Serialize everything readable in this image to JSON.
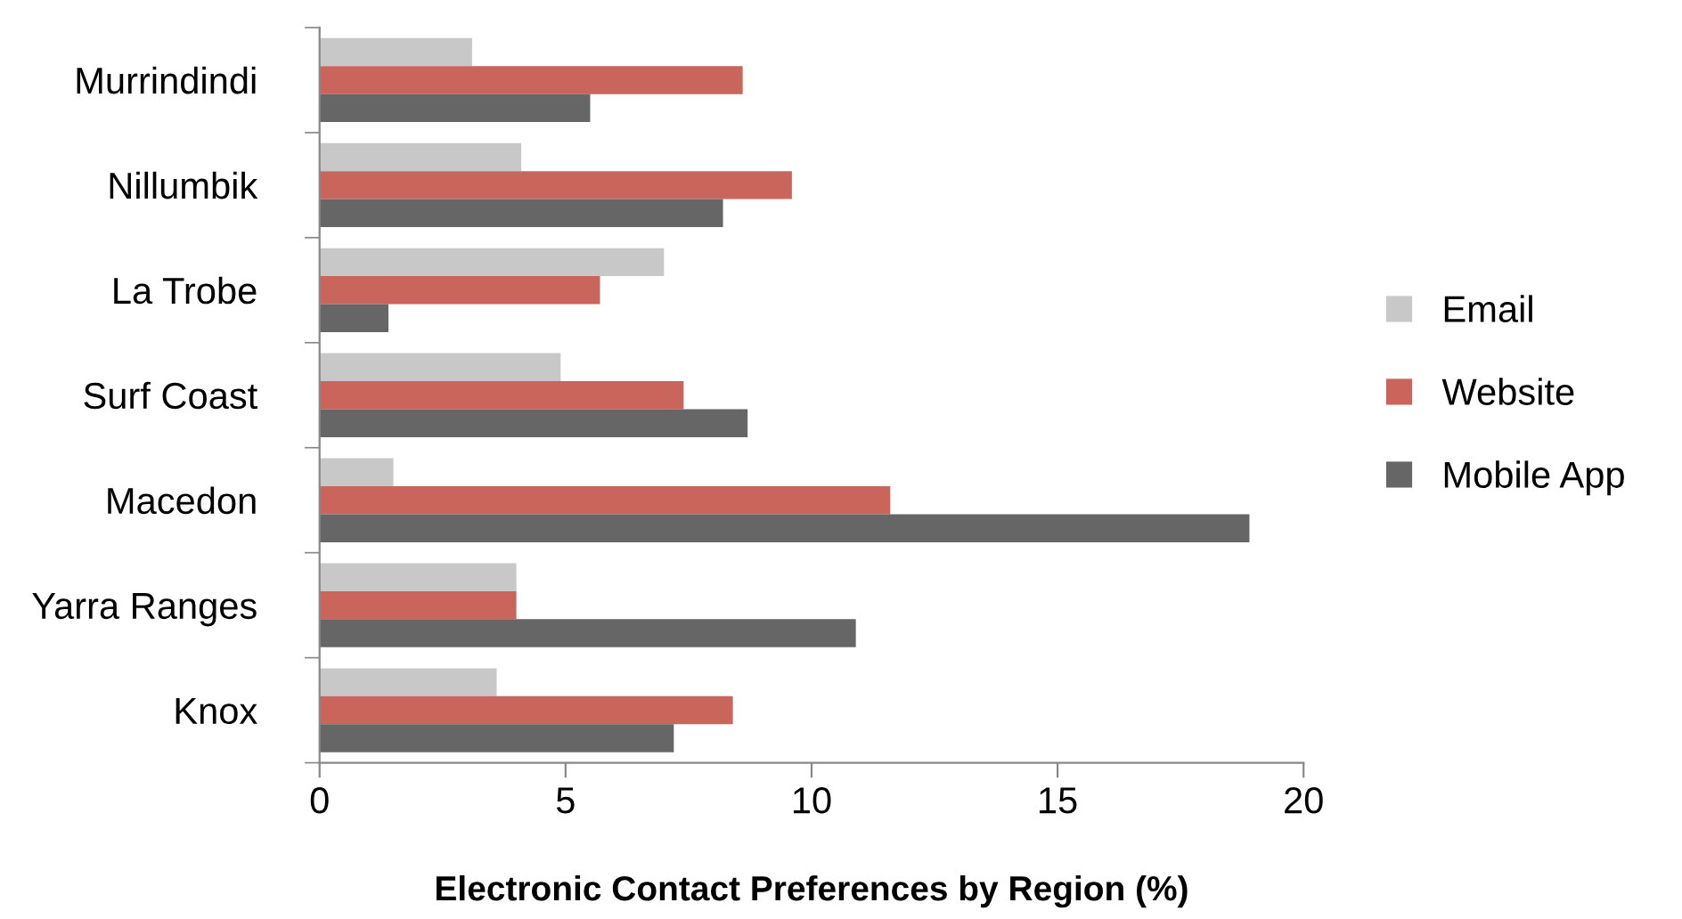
{
  "chart_data": {
    "type": "bar",
    "orientation": "horizontal",
    "xlabel": "Electronic Contact Preferences by Region (%)",
    "categories": [
      "Murrindindi",
      "Nillumbik",
      "La Trobe",
      "Surf Coast",
      "Macedon",
      "Yarra Ranges",
      "Knox"
    ],
    "series": [
      {
        "name": "Email",
        "color": "#c8c8c8",
        "values": [
          3.1,
          4.1,
          7.0,
          4.9,
          1.5,
          4.0,
          3.6
        ]
      },
      {
        "name": "Website",
        "color": "#c9655b",
        "values": [
          8.6,
          9.6,
          5.7,
          7.4,
          11.6,
          4.0,
          8.4
        ]
      },
      {
        "name": "Mobile App",
        "color": "#666666",
        "values": [
          5.5,
          8.2,
          1.4,
          8.7,
          18.9,
          10.9,
          7.2
        ]
      }
    ],
    "xlim": [
      0,
      20
    ],
    "xticks": [
      0,
      5,
      10,
      15,
      20
    ],
    "grid": false,
    "legend": "right"
  }
}
